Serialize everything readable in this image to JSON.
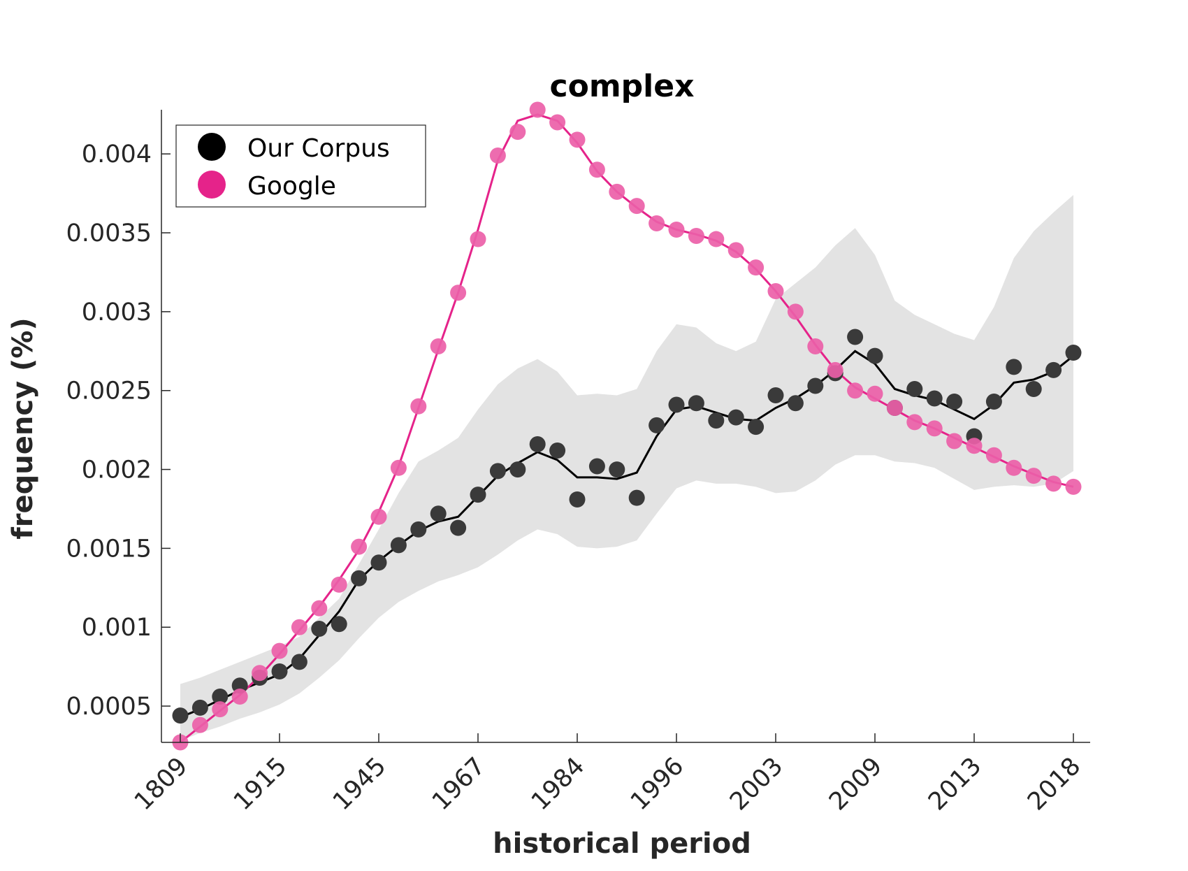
{
  "chart_data": {
    "type": "line",
    "title": "complex",
    "xlabel": "historical period",
    "ylabel": "frequency (%)",
    "ylim": [
      0.00027,
      0.00428
    ],
    "xtick_labels": [
      "1809",
      "1915",
      "1945",
      "1967",
      "1984",
      "1996",
      "2003",
      "2009",
      "2013",
      "2018"
    ],
    "ytick_labels": [
      "0.0005",
      "0.001",
      "0.0015",
      "0.002",
      "0.0025",
      "0.003",
      "0.0035",
      "0.004"
    ],
    "ytick_values": [
      0.0005,
      0.001,
      0.0015,
      0.002,
      0.0025,
      0.003,
      0.0035,
      0.004
    ],
    "legend_position": "top-left",
    "n_points": 46,
    "series": [
      {
        "name": "Our Corpus",
        "color": "#000000",
        "marker_color": "#3a3a3a",
        "points": [
          0.00044,
          0.00049,
          0.00056,
          0.00063,
          0.00068,
          0.00072,
          0.00078,
          0.00099,
          0.00102,
          0.00131,
          0.00141,
          0.00152,
          0.00162,
          0.00172,
          0.00163,
          0.00184,
          0.00199,
          0.002,
          0.00216,
          0.00212,
          0.00181,
          0.00202,
          0.002,
          0.00182,
          0.00228,
          0.00241,
          0.00242,
          0.00231,
          0.00233,
          0.00227,
          0.00247,
          0.00242,
          0.00253,
          0.00261,
          0.00284,
          0.00272,
          0.00239,
          0.00251,
          0.00245,
          0.00243,
          0.00221,
          0.00243,
          0.00265,
          0.00251,
          0.00263,
          0.00274
        ],
        "trend": [
          0.00043,
          0.00048,
          0.00054,
          0.0006,
          0.00065,
          0.0007,
          0.0008,
          0.00095,
          0.0011,
          0.0013,
          0.00142,
          0.00152,
          0.00161,
          0.00167,
          0.0017,
          0.00183,
          0.00196,
          0.00204,
          0.00211,
          0.00206,
          0.00195,
          0.00195,
          0.00194,
          0.00198,
          0.00221,
          0.00238,
          0.0024,
          0.00236,
          0.00232,
          0.00231,
          0.00239,
          0.00245,
          0.00253,
          0.00263,
          0.00275,
          0.00267,
          0.00251,
          0.00247,
          0.00244,
          0.00238,
          0.00232,
          0.00241,
          0.00255,
          0.00257,
          0.00262,
          0.00272
        ],
        "band_upper": [
          0.00064,
          0.00068,
          0.00073,
          0.00078,
          0.00083,
          0.00088,
          0.00094,
          0.00106,
          0.00118,
          0.0014,
          0.00162,
          0.00185,
          0.00205,
          0.00212,
          0.0022,
          0.00238,
          0.00254,
          0.00264,
          0.0027,
          0.00262,
          0.00247,
          0.00248,
          0.00247,
          0.00251,
          0.00275,
          0.00292,
          0.0029,
          0.0028,
          0.00275,
          0.00281,
          0.00308,
          0.00318,
          0.00328,
          0.00342,
          0.00353,
          0.00336,
          0.00307,
          0.00298,
          0.00292,
          0.00286,
          0.00282,
          0.00303,
          0.00334,
          0.00351,
          0.00363,
          0.00374
        ],
        "band_lower": [
          0.00028,
          0.00033,
          0.00037,
          0.00042,
          0.00046,
          0.00051,
          0.00058,
          0.00068,
          0.00079,
          0.00093,
          0.00106,
          0.00116,
          0.00123,
          0.00129,
          0.00133,
          0.00138,
          0.00146,
          0.00155,
          0.00162,
          0.00159,
          0.00151,
          0.0015,
          0.00151,
          0.00155,
          0.00172,
          0.00188,
          0.00193,
          0.00191,
          0.00191,
          0.00189,
          0.00185,
          0.00186,
          0.00193,
          0.00203,
          0.00209,
          0.00209,
          0.00205,
          0.00204,
          0.00201,
          0.00194,
          0.00187,
          0.00189,
          0.0019,
          0.00189,
          0.00191,
          0.00199
        ]
      },
      {
        "name": "Google",
        "color": "#e5238a",
        "marker_color": "#ec5fa8",
        "points": [
          0.00027,
          0.00038,
          0.00048,
          0.00056,
          0.00071,
          0.00085,
          0.001,
          0.00112,
          0.00127,
          0.00151,
          0.0017,
          0.00201,
          0.0024,
          0.00278,
          0.00312,
          0.00346,
          0.00399,
          0.00414,
          0.00428,
          0.0042,
          0.00409,
          0.0039,
          0.00376,
          0.00367,
          0.00356,
          0.00352,
          0.00348,
          0.00346,
          0.00339,
          0.00328,
          0.00313,
          0.003,
          0.00278,
          0.00263,
          0.0025,
          0.00248,
          0.00239,
          0.0023,
          0.00226,
          0.00218,
          0.00215,
          0.00209,
          0.00201,
          0.00196,
          0.00191,
          0.00189
        ],
        "trend": [
          0.00027,
          0.00037,
          0.00047,
          0.00057,
          0.00069,
          0.00083,
          0.00098,
          0.00113,
          0.0013,
          0.00149,
          0.00173,
          0.00202,
          0.00239,
          0.00276,
          0.00312,
          0.00352,
          0.00396,
          0.00421,
          0.00425,
          0.00421,
          0.00407,
          0.00389,
          0.00376,
          0.00366,
          0.00357,
          0.00352,
          0.00349,
          0.00345,
          0.00338,
          0.00327,
          0.00313,
          0.00297,
          0.00279,
          0.00263,
          0.00252,
          0.00245,
          0.00238,
          0.00231,
          0.00226,
          0.0022,
          0.00214,
          0.00208,
          0.00202,
          0.00197,
          0.00192,
          0.00189
        ]
      }
    ]
  }
}
